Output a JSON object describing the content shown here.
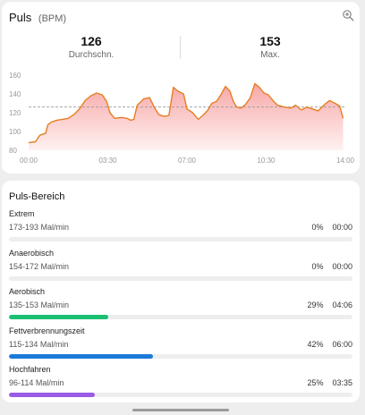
{
  "pulse": {
    "title": "Puls",
    "unit": "(BPM)",
    "zoom_icon": "zoom-in-icon",
    "stats": [
      {
        "value": "126",
        "label": "Durchschn."
      },
      {
        "value": "153",
        "label": "Max."
      }
    ]
  },
  "chart_data": {
    "type": "area",
    "x_ticks": [
      "00:00",
      "03:30",
      "07:00",
      "10:30",
      "14:00"
    ],
    "y_ticks": [
      "160",
      "140",
      "120",
      "100",
      "80"
    ],
    "ylim": [
      80,
      160
    ],
    "xlim_hours": [
      0,
      14
    ],
    "average_line": 126,
    "colors": {
      "line": "#e67e22",
      "fill_top": "#f7a7a7",
      "fill_bottom": "#fff1f1",
      "avg_line": "#999999"
    },
    "points": [
      [
        0.0,
        88
      ],
      [
        0.3,
        89
      ],
      [
        0.5,
        96
      ],
      [
        0.75,
        98
      ],
      [
        0.85,
        107
      ],
      [
        1.0,
        110
      ],
      [
        1.25,
        112
      ],
      [
        1.5,
        113
      ],
      [
        1.75,
        114
      ],
      [
        2.0,
        118
      ],
      [
        2.25,
        124
      ],
      [
        2.5,
        133
      ],
      [
        2.75,
        138
      ],
      [
        3.0,
        141
      ],
      [
        3.25,
        139
      ],
      [
        3.45,
        132
      ],
      [
        3.6,
        120
      ],
      [
        3.8,
        114
      ],
      [
        4.1,
        115
      ],
      [
        4.35,
        114
      ],
      [
        4.5,
        112
      ],
      [
        4.65,
        113
      ],
      [
        4.8,
        128
      ],
      [
        5.1,
        135
      ],
      [
        5.35,
        136
      ],
      [
        5.55,
        126
      ],
      [
        5.75,
        118
      ],
      [
        6.0,
        116
      ],
      [
        6.2,
        117
      ],
      [
        6.4,
        147
      ],
      [
        6.6,
        143
      ],
      [
        6.85,
        140
      ],
      [
        7.0,
        124
      ],
      [
        7.25,
        120
      ],
      [
        7.5,
        113
      ],
      [
        7.7,
        117
      ],
      [
        7.9,
        122
      ],
      [
        8.1,
        130
      ],
      [
        8.3,
        132
      ],
      [
        8.5,
        139
      ],
      [
        8.7,
        148
      ],
      [
        8.9,
        143
      ],
      [
        9.05,
        132
      ],
      [
        9.2,
        126
      ],
      [
        9.4,
        125
      ],
      [
        9.6,
        129
      ],
      [
        9.8,
        136
      ],
      [
        10.0,
        151
      ],
      [
        10.2,
        147
      ],
      [
        10.4,
        141
      ],
      [
        10.6,
        139
      ],
      [
        10.8,
        133
      ],
      [
        11.0,
        128
      ],
      [
        11.3,
        126
      ],
      [
        11.6,
        125
      ],
      [
        11.8,
        128
      ],
      [
        12.05,
        123
      ],
      [
        12.3,
        126
      ],
      [
        12.55,
        124
      ],
      [
        12.8,
        122
      ],
      [
        13.05,
        128
      ],
      [
        13.3,
        133
      ],
      [
        13.55,
        130
      ],
      [
        13.75,
        127
      ],
      [
        13.9,
        114
      ]
    ]
  },
  "zones": {
    "title": "Puls-Bereich",
    "items": [
      {
        "name": "Extrem",
        "range": "173-193 Mal/min",
        "percent": "0%",
        "time": "00:00",
        "fraction": 0.0,
        "color": "#cccccc"
      },
      {
        "name": "Anaerobisch",
        "range": "154-172 Mal/min",
        "percent": "0%",
        "time": "00:00",
        "fraction": 0.0,
        "color": "#cccccc"
      },
      {
        "name": "Aerobisch",
        "range": "135-153 Mal/min",
        "percent": "29%",
        "time": "04:06",
        "fraction": 0.29,
        "color": "#1bbf72"
      },
      {
        "name": "Fettverbrennungszeit",
        "range": "115-134 Mal/min",
        "percent": "42%",
        "time": "06:00",
        "fraction": 0.42,
        "color": "#1a7bd8"
      },
      {
        "name": "Hochfahren",
        "range": "96-114 Mal/min",
        "percent": "25%",
        "time": "03:35",
        "fraction": 0.25,
        "color": "#9a5ce6"
      }
    ]
  }
}
